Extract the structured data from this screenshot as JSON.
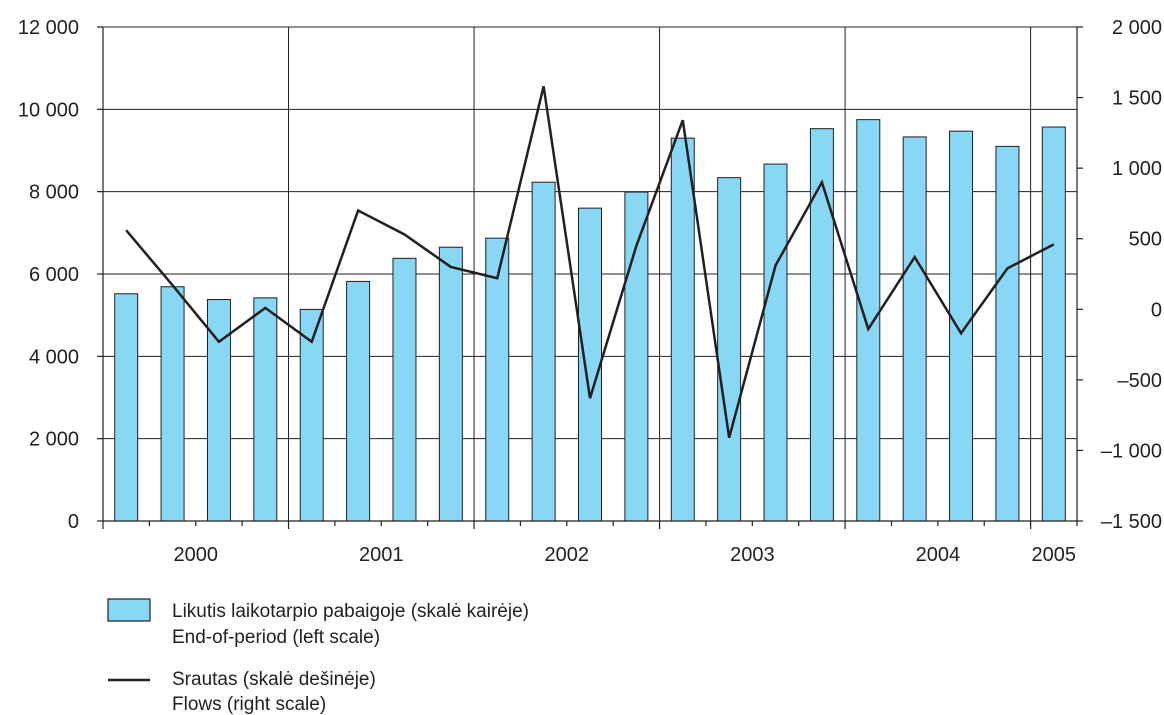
{
  "chart_data": {
    "type": "bar+line",
    "title": "",
    "grid": true,
    "x_period_labels": [
      "2000",
      "2001",
      "2002",
      "2003",
      "2004",
      "2005"
    ],
    "categories": [
      "2000Q1",
      "2000Q2",
      "2000Q3",
      "2000Q4",
      "2001Q1",
      "2001Q2",
      "2001Q3",
      "2001Q4",
      "2002Q1",
      "2002Q2",
      "2002Q3",
      "2002Q4",
      "2003Q1",
      "2003Q2",
      "2003Q3",
      "2003Q4",
      "2004Q1",
      "2004Q2",
      "2004Q3",
      "2004Q4",
      "2005Q1"
    ],
    "left_axis": {
      "ylim": [
        0,
        12000
      ],
      "ticks": [
        0,
        2000,
        4000,
        6000,
        8000,
        10000,
        12000
      ],
      "tick_labels": [
        "0",
        "2 000",
        "4 000",
        "6 000",
        "8 000",
        "10 000",
        "12 000"
      ]
    },
    "right_axis": {
      "ylim": [
        -1500,
        2000
      ],
      "ticks": [
        -1500,
        -1000,
        -500,
        0,
        500,
        1000,
        1500,
        2000
      ],
      "tick_labels": [
        "–1 500",
        "–1 000",
        "–500",
        "0",
        "500",
        "1 000",
        "1 500",
        "2 000"
      ]
    },
    "series": [
      {
        "name": "Likutis laikotarpio pabaigoje (skalė kairėje) / End-of-period (left scale)",
        "type": "bar",
        "axis": "left",
        "color": "#87d7f5",
        "values": [
          5520,
          5690,
          5380,
          5420,
          5140,
          5820,
          6380,
          6650,
          6870,
          8230,
          7600,
          7990,
          9300,
          8340,
          8670,
          9530,
          9750,
          9330,
          9470,
          9100,
          9570
        ]
      },
      {
        "name": "Srautas (skalė dešinėje) / Flows (right scale)",
        "type": "line",
        "axis": "right",
        "color": "#231f20",
        "values": [
          560,
          170,
          -230,
          10,
          -230,
          700,
          530,
          300,
          220,
          1580,
          -630,
          450,
          1340,
          -910,
          310,
          900,
          -140,
          370,
          -170,
          290,
          460
        ]
      }
    ],
    "legend": {
      "placement": "bottom-left",
      "items": [
        {
          "marker": "bar",
          "line1": "Likutis laikotarpio pabaigoje (skalė kairėje)",
          "line2": "End-of-period (left scale)"
        },
        {
          "marker": "line",
          "line1": "Srautas (skalė dešinėje)",
          "line2": "Flows (right scale)"
        }
      ]
    }
  }
}
